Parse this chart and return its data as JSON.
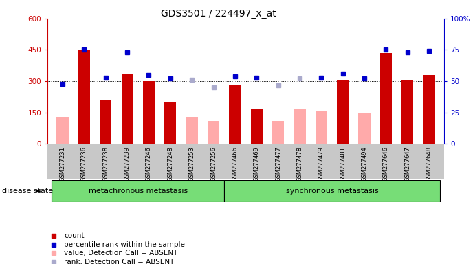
{
  "title": "GDS3501 / 224497_x_at",
  "samples": [
    "GSM277231",
    "GSM277236",
    "GSM277238",
    "GSM277239",
    "GSM277246",
    "GSM277248",
    "GSM277253",
    "GSM277256",
    "GSM277466",
    "GSM277469",
    "GSM277477",
    "GSM277478",
    "GSM277479",
    "GSM277481",
    "GSM277494",
    "GSM277646",
    "GSM277647",
    "GSM277648"
  ],
  "count_values": [
    null,
    450,
    210,
    335,
    300,
    200,
    null,
    null,
    285,
    165,
    null,
    null,
    null,
    305,
    null,
    435,
    305,
    330
  ],
  "count_absent": [
    130,
    null,
    null,
    null,
    null,
    null,
    130,
    110,
    null,
    null,
    110,
    165,
    155,
    null,
    150,
    null,
    null,
    null
  ],
  "percentile_values": [
    48,
    75,
    53,
    73,
    55,
    52,
    null,
    null,
    54,
    53,
    null,
    null,
    53,
    56,
    52,
    75,
    73,
    74
  ],
  "percentile_absent": [
    null,
    null,
    null,
    null,
    null,
    null,
    51,
    45,
    null,
    null,
    47,
    52,
    null,
    null,
    null,
    null,
    null,
    null
  ],
  "n_metachronous": 8,
  "n_synchronous": 10,
  "group1_label": "metachronous metastasis",
  "group2_label": "synchronous metastasis",
  "group_label": "disease state",
  "ylim_left": [
    0,
    600
  ],
  "ylim_right": [
    0,
    100
  ],
  "yticks_left": [
    0,
    150,
    300,
    450,
    600
  ],
  "yticks_right": [
    0,
    25,
    50,
    75,
    100
  ],
  "bar_color_present": "#cc0000",
  "bar_color_absent": "#ffaaaa",
  "dot_color_present": "#0000cc",
  "dot_color_absent": "#aaaacc",
  "group_color": "#77dd77",
  "group_border_color": "#44aa44",
  "xtick_bg_color": "#c8c8c8",
  "legend_items": [
    {
      "label": "count",
      "color": "#cc0000"
    },
    {
      "label": "percentile rank within the sample",
      "color": "#0000cc"
    },
    {
      "label": "value, Detection Call = ABSENT",
      "color": "#ffaaaa"
    },
    {
      "label": "rank, Detection Call = ABSENT",
      "color": "#aaaacc"
    }
  ]
}
